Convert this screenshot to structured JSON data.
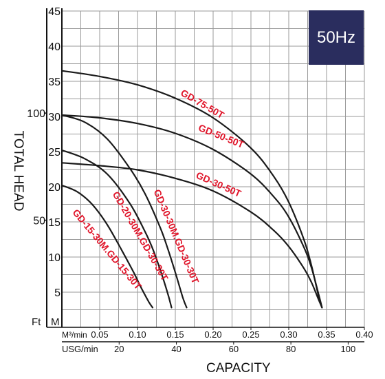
{
  "badge": "50Hz",
  "chart_data": {
    "type": "line",
    "xlabel": "CAPACITY",
    "ylabel": "TOTAL HEAD",
    "x_unit_primary": "M³/min",
    "x_unit_secondary": "USG/min",
    "y_unit_primary": "M",
    "y_unit_secondary": "Ft",
    "xlim": [
      0,
      0.4
    ],
    "ylim": [
      0,
      45
    ],
    "x_ticks": [
      {
        "value": 0.05,
        "label": "0.05"
      },
      {
        "value": 0.1,
        "label": "0.10"
      },
      {
        "value": 0.15,
        "label": "0.15"
      },
      {
        "value": 0.2,
        "label": "0.20"
      },
      {
        "value": 0.25,
        "label": "0.25"
      },
      {
        "value": 0.3,
        "label": "0.30"
      },
      {
        "value": 0.35,
        "label": "0.35"
      },
      {
        "value": 0.4,
        "label": "0.40"
      }
    ],
    "x2_ticks": [
      {
        "value": 20,
        "label": "20"
      },
      {
        "value": 40,
        "label": "40"
      },
      {
        "value": 60,
        "label": "60"
      },
      {
        "value": 80,
        "label": "80"
      },
      {
        "value": 100,
        "label": "100"
      }
    ],
    "y_ticks": [
      {
        "value": 5,
        "label": "5"
      },
      {
        "value": 10,
        "label": "10"
      },
      {
        "value": 15,
        "label": "15"
      },
      {
        "value": 20,
        "label": "20"
      },
      {
        "value": 25,
        "label": "25"
      },
      {
        "value": 30,
        "label": "30"
      },
      {
        "value": 35,
        "label": "35"
      },
      {
        "value": 40,
        "label": "40"
      },
      {
        "value": 45,
        "label": "45"
      }
    ],
    "y2_ticks": [
      {
        "value": 50,
        "label": "50"
      },
      {
        "value": 100,
        "label": "100"
      }
    ],
    "grid": true,
    "series": [
      {
        "name": "GD-75-50T",
        "x": [
          0,
          0.05,
          0.1,
          0.15,
          0.2,
          0.25,
          0.28,
          0.3,
          0.32,
          0.33,
          0.34,
          0.344
        ],
        "y": [
          36.5,
          35.7,
          34.5,
          32.6,
          29.8,
          25.5,
          21.5,
          17.8,
          12.5,
          8.8,
          4.2,
          2.8
        ]
      },
      {
        "name": "GD-50-50T",
        "x": [
          0,
          0.05,
          0.1,
          0.15,
          0.2,
          0.25,
          0.28,
          0.3,
          0.32,
          0.33,
          0.34,
          0.344
        ],
        "y": [
          30.2,
          29.8,
          29.0,
          27.6,
          25.3,
          21.8,
          18.6,
          15.7,
          11.4,
          8.5,
          4.5,
          2.8
        ]
      },
      {
        "name": "GD-30-50T",
        "x": [
          0,
          0.05,
          0.1,
          0.15,
          0.2,
          0.25,
          0.28,
          0.3,
          0.32,
          0.33,
          0.34,
          0.344
        ],
        "y": [
          23.4,
          23.0,
          22.4,
          21.2,
          19.4,
          16.4,
          13.8,
          11.5,
          8.4,
          6.4,
          3.8,
          2.8
        ]
      },
      {
        "name": "GD-30-30M.GD-30-30T",
        "x": [
          0,
          0.03,
          0.06,
          0.09,
          0.11,
          0.13,
          0.14,
          0.15,
          0.16,
          0.165
        ],
        "y": [
          30.2,
          29.2,
          26.8,
          22.6,
          19.0,
          14.2,
          11.2,
          7.8,
          4.2,
          2.8
        ]
      },
      {
        "name": "GD-20-30M.GD-30-30T",
        "x": [
          0,
          0.03,
          0.06,
          0.09,
          0.11,
          0.12,
          0.13,
          0.14,
          0.145
        ],
        "y": [
          25.2,
          24.0,
          21.8,
          17.6,
          13.6,
          11.2,
          8.2,
          4.8,
          2.8
        ]
      },
      {
        "name": "GD-15-30M.GD-15-30T",
        "x": [
          0,
          0.02,
          0.04,
          0.06,
          0.08,
          0.095,
          0.105,
          0.115,
          0.12
        ],
        "y": [
          20.2,
          19.3,
          17.5,
          14.6,
          10.8,
          7.8,
          5.6,
          3.6,
          2.8
        ]
      }
    ]
  }
}
